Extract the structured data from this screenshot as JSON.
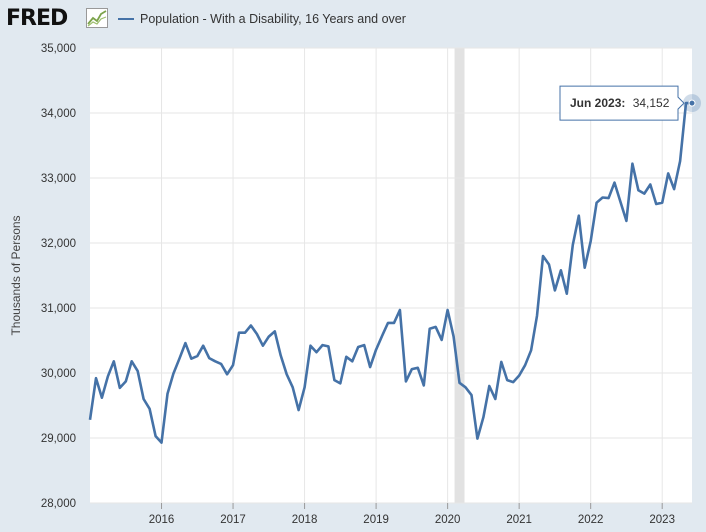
{
  "header": {
    "logo_text": "FRED",
    "logo_icon": "chart-line-icon",
    "legend_label": "Population - With a Disability, 16 Years and over",
    "series_color": "#4572a7"
  },
  "tooltip": {
    "label": "Jun 2023:",
    "value": "34,152"
  },
  "chart_data": {
    "type": "line",
    "ylabel": "Thousands of Persons",
    "ylim": [
      28000,
      35000
    ],
    "y_ticks": [
      28000,
      29000,
      30000,
      31000,
      32000,
      33000,
      34000,
      35000
    ],
    "y_tick_labels": [
      "28,000",
      "29,000",
      "30,000",
      "31,000",
      "32,000",
      "33,000",
      "34,000",
      "35,000"
    ],
    "x_ticks": [
      "2016-01",
      "2017-01",
      "2018-01",
      "2019-01",
      "2020-01",
      "2021-01",
      "2022-01",
      "2023-01"
    ],
    "x_tick_labels": [
      "2016",
      "2017",
      "2018",
      "2019",
      "2020",
      "2021",
      "2022",
      "2023"
    ],
    "xlim": [
      "2015-01",
      "2023-06"
    ],
    "recession_band": [
      "2020-02",
      "2020-04"
    ],
    "grid": true,
    "legend_placement": "top",
    "series": [
      {
        "name": "Population - With a Disability, 16 Years and over",
        "color": "#4572a7",
        "x": [
          "2015-01",
          "2015-02",
          "2015-03",
          "2015-04",
          "2015-05",
          "2015-06",
          "2015-07",
          "2015-08",
          "2015-09",
          "2015-10",
          "2015-11",
          "2015-12",
          "2016-01",
          "2016-02",
          "2016-03",
          "2016-04",
          "2016-05",
          "2016-06",
          "2016-07",
          "2016-08",
          "2016-09",
          "2016-10",
          "2016-11",
          "2016-12",
          "2017-01",
          "2017-02",
          "2017-03",
          "2017-04",
          "2017-05",
          "2017-06",
          "2017-07",
          "2017-08",
          "2017-09",
          "2017-10",
          "2017-11",
          "2017-12",
          "2018-01",
          "2018-02",
          "2018-03",
          "2018-04",
          "2018-05",
          "2018-06",
          "2018-07",
          "2018-08",
          "2018-09",
          "2018-10",
          "2018-11",
          "2018-12",
          "2019-01",
          "2019-02",
          "2019-03",
          "2019-04",
          "2019-05",
          "2019-06",
          "2019-07",
          "2019-08",
          "2019-09",
          "2019-10",
          "2019-11",
          "2019-12",
          "2020-01",
          "2020-02",
          "2020-03",
          "2020-04",
          "2020-05",
          "2020-06",
          "2020-07",
          "2020-08",
          "2020-09",
          "2020-10",
          "2020-11",
          "2020-12",
          "2021-01",
          "2021-02",
          "2021-03",
          "2021-04",
          "2021-05",
          "2021-06",
          "2021-07",
          "2021-08",
          "2021-09",
          "2021-10",
          "2021-11",
          "2021-12",
          "2022-01",
          "2022-02",
          "2022-03",
          "2022-04",
          "2022-05",
          "2022-06",
          "2022-07",
          "2022-08",
          "2022-09",
          "2022-10",
          "2022-11",
          "2022-12",
          "2023-01",
          "2023-02",
          "2023-03",
          "2023-04",
          "2023-05",
          "2023-06"
        ],
        "y": [
          29280,
          29920,
          29620,
          29950,
          30180,
          29770,
          29870,
          30180,
          30030,
          29600,
          29450,
          29030,
          28930,
          29680,
          29990,
          30220,
          30460,
          30220,
          30260,
          30420,
          30230,
          30180,
          30140,
          29980,
          30120,
          30620,
          30620,
          30730,
          30600,
          30420,
          30560,
          30640,
          30270,
          29980,
          29780,
          29430,
          29780,
          30420,
          30320,
          30430,
          30410,
          29890,
          29840,
          30250,
          30180,
          30400,
          30430,
          30090,
          30360,
          30570,
          30770,
          30770,
          30970,
          29870,
          30060,
          30080,
          29810,
          30680,
          30710,
          30510,
          30970,
          30560,
          29850,
          29780,
          29660,
          28990,
          29320,
          29800,
          29600,
          30170,
          29890,
          29860,
          29960,
          30120,
          30350,
          30880,
          31800,
          31670,
          31270,
          31580,
          31220,
          31970,
          32420,
          31620,
          32030,
          32620,
          32700,
          32690,
          32930,
          32630,
          32340,
          33220,
          32810,
          32760,
          32900,
          32600,
          32620,
          33070,
          32830,
          33260,
          34152,
          34152
        ]
      }
    ]
  }
}
